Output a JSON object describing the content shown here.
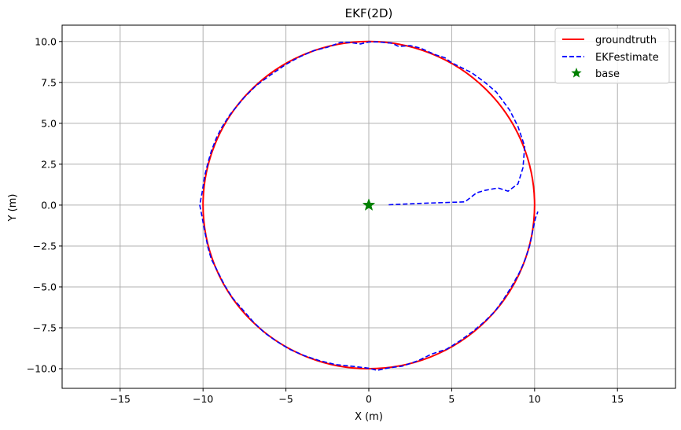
{
  "chart_data": {
    "type": "line",
    "title": "EKF(2D)",
    "xlabel": "X (m)",
    "ylabel": "Y (m)",
    "xlim": [
      -18.5,
      18.5
    ],
    "ylim": [
      -11.2,
      11.0
    ],
    "grid": true,
    "xticks": [
      -15,
      -10,
      -5,
      0,
      5,
      10,
      15
    ],
    "xtick_labels": [
      "−15",
      "−10",
      "−5",
      "0",
      "5",
      "10",
      "15"
    ],
    "yticks": [
      10.0,
      7.5,
      5.0,
      2.5,
      0.0,
      -2.5,
      -5.0,
      -7.5,
      -10.0
    ],
    "ytick_labels": [
      "10.0",
      "7.5",
      "5.0",
      "2.5",
      "0.0",
      "−2.5",
      "−5.0",
      "−7.5",
      "−10.0"
    ],
    "legend_position": "top-right",
    "series": [
      {
        "name": "groundtruth",
        "kind": "circle",
        "center": [
          0,
          0
        ],
        "radius": 10,
        "color": "#ff0000",
        "style": "solid"
      },
      {
        "name": "EKFestimate",
        "color": "#0000ff",
        "style": "dashed",
        "points": [
          [
            1.2,
            0.02
          ],
          [
            3.0,
            0.1
          ],
          [
            5.8,
            0.2
          ],
          [
            6.5,
            0.75
          ],
          [
            7.0,
            0.9
          ],
          [
            7.8,
            1.05
          ],
          [
            8.4,
            0.85
          ],
          [
            9.0,
            1.3
          ],
          [
            9.3,
            2.3
          ],
          [
            9.4,
            3.6
          ],
          [
            9.0,
            4.8
          ],
          [
            8.5,
            5.8
          ],
          [
            7.7,
            6.9
          ],
          [
            7.0,
            7.5
          ],
          [
            6.2,
            8.1
          ],
          [
            5.0,
            8.7
          ],
          [
            4.6,
            9.0
          ],
          [
            4.0,
            9.2
          ],
          [
            3.1,
            9.6
          ],
          [
            2.5,
            9.75
          ],
          [
            1.8,
            9.7
          ],
          [
            1.4,
            9.9
          ],
          [
            0.5,
            9.98
          ],
          [
            0.0,
            9.97
          ],
          [
            -0.5,
            9.85
          ],
          [
            -1.2,
            9.95
          ],
          [
            -1.7,
            9.95
          ],
          [
            -2.5,
            9.65
          ],
          [
            -3.3,
            9.45
          ],
          [
            -4.2,
            9.05
          ],
          [
            -5.0,
            8.6
          ],
          [
            -6.0,
            7.9
          ],
          [
            -6.8,
            7.3
          ],
          [
            -7.0,
            7.1
          ],
          [
            -7.5,
            6.6
          ],
          [
            -8.0,
            6.0
          ],
          [
            -8.4,
            5.5
          ],
          [
            -8.9,
            4.7
          ],
          [
            -9.2,
            4.1
          ],
          [
            -9.5,
            3.3
          ],
          [
            -9.7,
            2.6
          ],
          [
            -9.9,
            1.8
          ],
          [
            -10.05,
            0.8
          ],
          [
            -10.2,
            0.0
          ],
          [
            -10.1,
            -0.5
          ],
          [
            -9.9,
            -1.6
          ],
          [
            -9.7,
            -2.6
          ],
          [
            -9.5,
            -3.3
          ],
          [
            -9.1,
            -4.1
          ],
          [
            -8.7,
            -4.9
          ],
          [
            -8.2,
            -5.7
          ],
          [
            -7.6,
            -6.4
          ],
          [
            -7.0,
            -7.1
          ],
          [
            -6.3,
            -7.8
          ],
          [
            -5.6,
            -8.3
          ],
          [
            -4.8,
            -8.8
          ],
          [
            -3.9,
            -9.2
          ],
          [
            -3.0,
            -9.5
          ],
          [
            -2.0,
            -9.75
          ],
          [
            -1.0,
            -9.85
          ],
          [
            0.0,
            -9.97
          ],
          [
            0.5,
            -10.1
          ],
          [
            1.2,
            -9.95
          ],
          [
            2.0,
            -9.85
          ],
          [
            3.0,
            -9.5
          ],
          [
            3.8,
            -9.1
          ],
          [
            4.7,
            -8.8
          ],
          [
            5.5,
            -8.3
          ],
          [
            6.3,
            -7.7
          ],
          [
            7.0,
            -7.1
          ],
          [
            7.6,
            -6.5
          ],
          [
            8.1,
            -5.8
          ],
          [
            8.6,
            -5.0
          ],
          [
            9.1,
            -4.1
          ],
          [
            9.4,
            -3.4
          ],
          [
            9.7,
            -2.5
          ],
          [
            9.9,
            -1.5
          ],
          [
            10.05,
            -0.8
          ],
          [
            10.2,
            -0.4
          ]
        ]
      },
      {
        "name": "base",
        "kind": "marker",
        "marker": "star",
        "color": "#008000",
        "points": [
          [
            0,
            0
          ]
        ]
      }
    ]
  }
}
